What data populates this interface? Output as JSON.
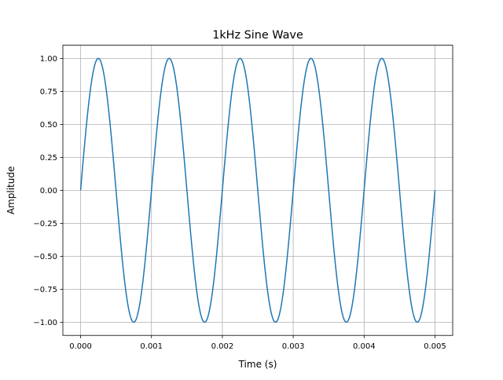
{
  "chart_data": {
    "type": "line",
    "title": "1kHz Sine Wave",
    "xlabel": "Time (s)",
    "ylabel": "Amplitude",
    "xlim": [
      -0.00025,
      0.00525
    ],
    "ylim": [
      -1.1,
      1.1
    ],
    "xticks": [
      "0.000",
      "0.001",
      "0.002",
      "0.003",
      "0.004",
      "0.005"
    ],
    "yticks": [
      "-1.00",
      "-0.75",
      "-0.50",
      "-0.25",
      "0.00",
      "0.25",
      "0.50",
      "0.75",
      "1.00"
    ],
    "grid": true,
    "series": [
      {
        "function": "sine",
        "frequency_hz": 1000,
        "amplitude": 1,
        "t_start": 0,
        "t_end": 0.005,
        "color": "#1f77b4"
      }
    ]
  }
}
